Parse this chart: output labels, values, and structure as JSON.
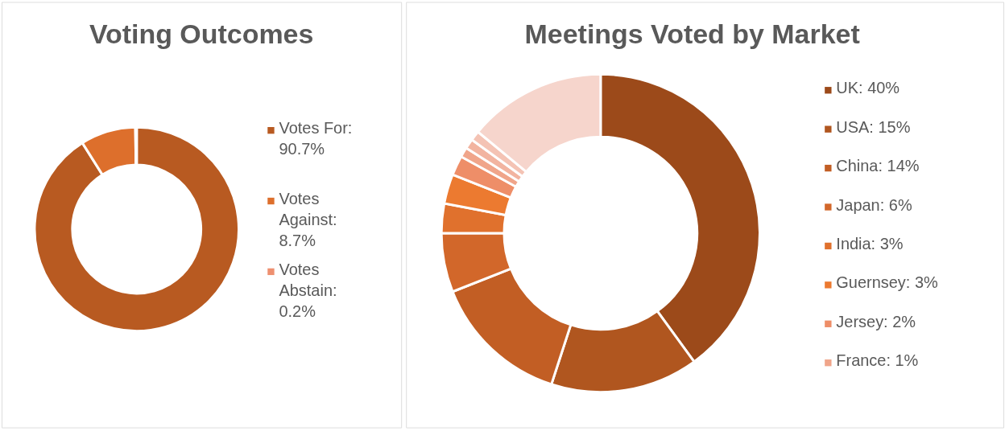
{
  "chart_data": [
    {
      "type": "donut",
      "title": "Voting Outcomes",
      "categories": [
        "Votes For: 90.7%",
        "Votes Against: 8.7%",
        "Votes Abstain: 0.2%"
      ],
      "values": [
        90.7,
        8.7,
        0.2
      ],
      "colors": [
        "#b85a21",
        "#dd6f2c",
        "#ee9070"
      ],
      "legend": "right"
    },
    {
      "type": "donut",
      "title": "Meetings Voted by Market",
      "categories": [
        "UK: 40%",
        "USA: 15%",
        "China: 14%",
        "Japan: 6%",
        "India: 3%",
        "Guernsey: 3%",
        "Jersey: 2%",
        "France: 1%",
        null,
        null,
        null
      ],
      "values": [
        40,
        15,
        14,
        6,
        3,
        3,
        2,
        1,
        1,
        1,
        14
      ],
      "colors": [
        "#9c4a1a",
        "#b0561f",
        "#c25e24",
        "#d2672a",
        "#e0712d",
        "#ec7a30",
        "#ee8e68",
        "#f0a58a",
        "#f2b4a0",
        "#f4c3b4",
        "#f6d5cc"
      ],
      "legend": "right"
    }
  ]
}
